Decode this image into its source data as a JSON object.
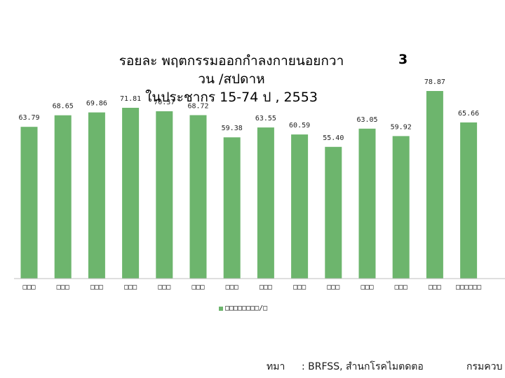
{
  "chart_data": {
    "type": "bar",
    "title_line1": "รอยละ พฤตกรรมออกกำลงกายนอยกวา",
    "title_line2": "วน /สปดาห",
    "title_line3": "ในประชากร 15-74 ป , 2553",
    "title_number": "3",
    "categories": [
      "□□□",
      "□□□",
      "□□□",
      "□□□",
      "□□□",
      "□□□",
      "□□□",
      "□□□",
      "□□□",
      "□□□",
      "□□□",
      "□□□",
      "□□□",
      "□□□□□□"
    ],
    "values": [
      63.79,
      68.65,
      69.86,
      71.81,
      70.37,
      68.72,
      59.38,
      63.55,
      60.59,
      55.4,
      63.05,
      59.92,
      78.87,
      65.66
    ],
    "value_labels": [
      "63.79",
      "68.65",
      "69.86",
      "71.81",
      "70.37",
      "68.72",
      "59.38",
      "63.55",
      "60.59",
      "55.40",
      "63.05",
      "59.92",
      "78.87",
      "65.66"
    ],
    "legend": "□□□□□□□□/□",
    "ylim": [
      0,
      85
    ],
    "bar_color": "#6db56d",
    "grid": false
  },
  "footer": {
    "source_label": "ทมา",
    "source_text": ": BRFSS, สำนกโรคไมตดตอ",
    "department": "กรมควบ"
  }
}
